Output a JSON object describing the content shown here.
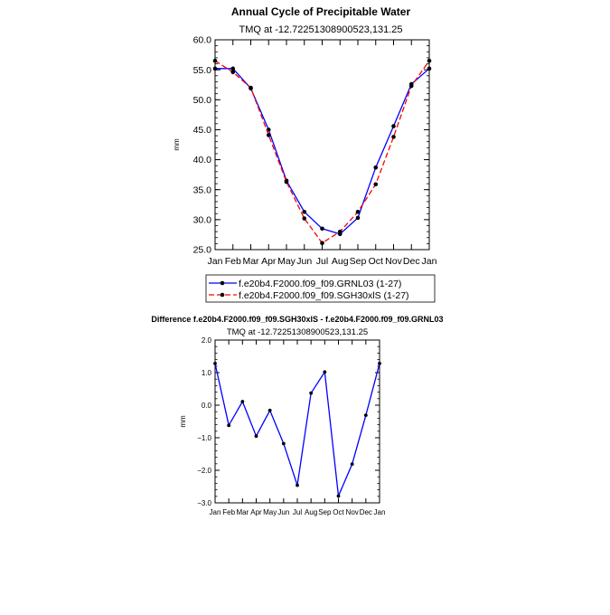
{
  "chart_data": [
    {
      "type": "line",
      "title": "Annual Cycle of Precipitable Water",
      "subtitle": "TMQ at -12.72251308900523,131.25",
      "xlabel": "",
      "ylabel": "mm",
      "categories": [
        "Jan",
        "Feb",
        "Mar",
        "Apr",
        "May",
        "Jun",
        "Jul",
        "Aug",
        "Sep",
        "Oct",
        "Nov",
        "Dec",
        "Jan"
      ],
      "ylim": [
        25.0,
        60.0
      ],
      "yticks": [
        "25.0",
        "30.0",
        "35.0",
        "40.0",
        "45.0",
        "50.0",
        "55.0",
        "60.0"
      ],
      "legend_placement": "below",
      "series": [
        {
          "name": "f.e20b4.F2000.f09_f09.GRNL03 (1-27)",
          "color": "#0000ff",
          "dash": "solid",
          "values": [
            55.2,
            55.2,
            51.9,
            45.0,
            36.5,
            31.3,
            28.5,
            27.6,
            30.3,
            38.7,
            45.6,
            52.6,
            55.2
          ]
        },
        {
          "name": "f.e20b4.F2000.f09_f09.SGH30xlS (1-27)",
          "color": "#ff0000",
          "dash": "dashed",
          "values": [
            56.5,
            54.6,
            52.0,
            44.1,
            36.3,
            30.2,
            26.1,
            28.0,
            31.3,
            35.9,
            43.8,
            52.3,
            56.5
          ]
        }
      ]
    },
    {
      "type": "line",
      "title": "Difference f.e20b4.F2000.f09_f09.SGH30xlS - f.e20b4.F2000.f09_f09.GRNL03",
      "subtitle": "TMQ at -12.72251308900523,131.25",
      "xlabel": "",
      "ylabel": "mm",
      "categories": [
        "Jan",
        "Feb",
        "Mar",
        "Apr",
        "May",
        "Jun",
        "Jul",
        "Aug",
        "Sep",
        "Oct",
        "Nov",
        "Dec",
        "Jan"
      ],
      "ylim": [
        -3.0,
        2.0
      ],
      "yticks": [
        "-3.0",
        "-2.0",
        "-1.0",
        "0.0",
        "1.0",
        "2.0"
      ],
      "series": [
        {
          "color": "#0000ff",
          "values": [
            1.28,
            -0.62,
            0.11,
            -0.95,
            -0.16,
            -1.18,
            -2.46,
            0.37,
            1.02,
            -2.79,
            -1.81,
            -0.31,
            1.28
          ]
        }
      ]
    }
  ]
}
